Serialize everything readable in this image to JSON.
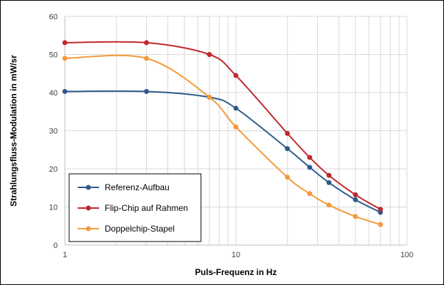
{
  "chart_data": {
    "type": "line",
    "title": "",
    "xlabel": "Puls-Frequenz in Hz",
    "ylabel": "Strahlungsfluss-Modulation in mW/sr",
    "x_scale": "log",
    "xlim": [
      1,
      100
    ],
    "ylim": [
      0,
      60
    ],
    "x_ticks": [
      1,
      10,
      100
    ],
    "y_ticks": [
      0,
      10,
      20,
      30,
      40,
      50,
      60
    ],
    "x_tick_labels": [
      "1",
      "10",
      "100"
    ],
    "y_tick_labels": [
      "0",
      "10",
      "20",
      "30",
      "40",
      "50",
      "60"
    ],
    "grid": true,
    "smooth": true,
    "legend_position": "bottom-left",
    "series": [
      {
        "name": "Referenz-Aufbau",
        "color": "#2E5A8C",
        "x": [
          1,
          3,
          7,
          10,
          20,
          27,
          35,
          50,
          70
        ],
        "y": [
          40.3,
          40.3,
          38.8,
          35.9,
          25.3,
          20.4,
          16.4,
          11.9,
          8.6
        ]
      },
      {
        "name": "Flip-Chip auf Rahmen",
        "color": "#C0282D",
        "x": [
          1,
          3,
          7,
          10,
          20,
          27,
          35,
          50,
          70
        ],
        "y": [
          53.1,
          53.1,
          50.0,
          44.5,
          29.3,
          23.0,
          18.3,
          13.2,
          9.4
        ]
      },
      {
        "name": "Doppelchip-Stapel",
        "color": "#F59A3B",
        "x": [
          1,
          3,
          7,
          10,
          20,
          27,
          35,
          50,
          70
        ],
        "y": [
          49.0,
          49.0,
          38.8,
          31.0,
          17.8,
          13.5,
          10.5,
          7.5,
          5.4
        ]
      }
    ]
  },
  "colors": {
    "grid": "#D9D9D9",
    "axis": "#BFBFBF",
    "frame": "#000000"
  }
}
